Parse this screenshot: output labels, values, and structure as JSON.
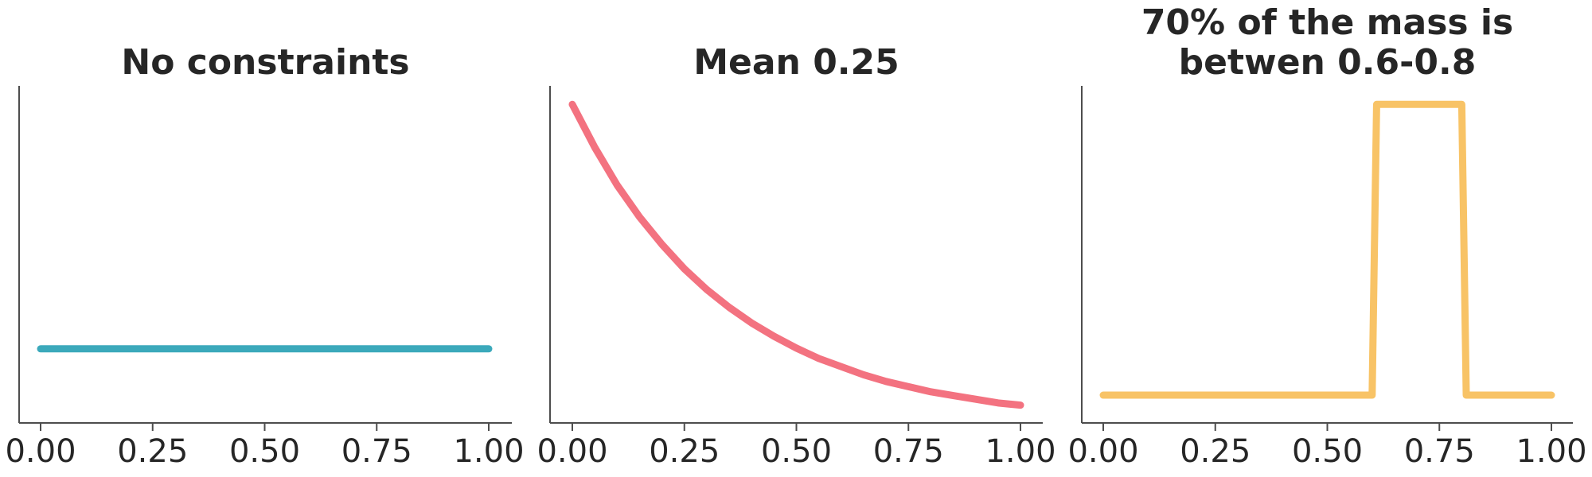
{
  "chart_data": [
    {
      "type": "line",
      "title": [
        "No constraints"
      ],
      "xlim": [
        0,
        1
      ],
      "ylim": [
        0,
        4.55
      ],
      "xticks": [
        "0.00",
        "0.25",
        "0.50",
        "0.75",
        "1.00"
      ],
      "xtick_values": [
        0,
        0.25,
        0.5,
        0.75,
        1.0
      ],
      "yticks_visible": false,
      "grid": false,
      "color": "#3ba9bb",
      "x": [
        0,
        1
      ],
      "y": [
        1,
        1
      ]
    },
    {
      "type": "line",
      "title": [
        "Mean 0.25"
      ],
      "xlim": [
        0,
        1
      ],
      "ylim": [
        0,
        4.55
      ],
      "xticks": [
        "0.00",
        "0.25",
        "0.50",
        "0.75",
        "1.00"
      ],
      "xtick_values": [
        0,
        0.25,
        0.5,
        0.75,
        1.0
      ],
      "yticks_visible": false,
      "grid": false,
      "color": "#f37280",
      "x": [
        0,
        0.05,
        0.1,
        0.15,
        0.2,
        0.25,
        0.3,
        0.35,
        0.4,
        0.45,
        0.5,
        0.55,
        0.6,
        0.65,
        0.7,
        0.75,
        0.8,
        0.85,
        0.9,
        0.95,
        1.0
      ],
      "y": [
        4.3,
        3.72,
        3.21,
        2.78,
        2.41,
        2.08,
        1.8,
        1.56,
        1.35,
        1.17,
        1.01,
        0.87,
        0.76,
        0.65,
        0.56,
        0.49,
        0.42,
        0.37,
        0.32,
        0.27,
        0.24
      ]
    },
    {
      "type": "line",
      "title": [
        "70% of the mass is",
        "betwen 0.6-0.8"
      ],
      "xlim": [
        0,
        1
      ],
      "ylim": [
        0,
        4.55
      ],
      "xticks": [
        "0.00",
        "0.25",
        "0.50",
        "0.75",
        "1.00"
      ],
      "xtick_values": [
        0,
        0.25,
        0.5,
        0.75,
        1.0
      ],
      "yticks_visible": false,
      "grid": false,
      "color": "#f8c366",
      "x": [
        0,
        0.6,
        0.61,
        0.8,
        0.81,
        1.0
      ],
      "y": [
        0.375,
        0.375,
        4.3,
        4.3,
        0.375,
        0.375
      ]
    }
  ]
}
